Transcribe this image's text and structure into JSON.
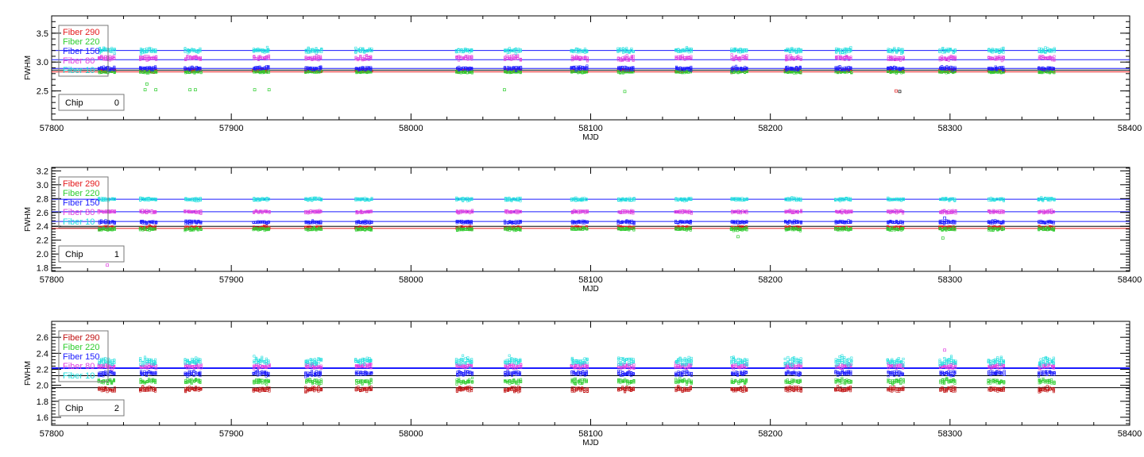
{
  "chart_data": [
    {
      "type": "scatter",
      "chip_label": "Chip",
      "chip_number": "0",
      "xlabel": "MJD",
      "ylabel": "FWHM",
      "xlim": [
        57800,
        58400
      ],
      "ylim": [
        2.0,
        3.8
      ],
      "x_ticks": [
        "57800",
        "57900",
        "58000",
        "58100",
        "58200",
        "58300",
        "58400"
      ],
      "y_ticks": [
        "2.5",
        "3.0",
        "3.5"
      ],
      "y_tick_values": [
        2.5,
        3.0,
        3.5
      ],
      "legend": [
        "Fiber 290",
        "Fiber 220",
        "Fiber 150",
        "Fiber 80",
        "Fiber 10"
      ],
      "series": [
        {
          "name": "Fiber 290",
          "color": "#e41a1c",
          "median": 2.85,
          "mean": 2.84,
          "spread": 0.02
        },
        {
          "name": "Fiber 220",
          "color": "#2ecc2e",
          "median": 2.83,
          "mean": 2.86,
          "spread": 0.02
        },
        {
          "name": "Fiber 150",
          "color": "#1a1aff",
          "median": 2.89,
          "mean": 2.9,
          "spread": 0.03
        },
        {
          "name": "Fiber 80",
          "color": "#e040e0",
          "median": 3.07,
          "mean": 3.05,
          "spread": 0.04
        },
        {
          "name": "Fiber 10",
          "color": "#20dede",
          "median": 3.2,
          "mean": 3.2,
          "spread": 0.04
        }
      ],
      "ref_lines": [
        {
          "y": 3.2,
          "color": "#1a1aff"
        },
        {
          "y": 3.04,
          "color": "#1a1aff"
        },
        {
          "y": 2.89,
          "color": "#1a1aff"
        },
        {
          "y": 2.86,
          "color": "#000000"
        },
        {
          "y": 2.83,
          "color": "#e41a1c"
        }
      ],
      "outliers": [
        {
          "x": 57853,
          "y": 2.62,
          "color": "#2ecc2e"
        },
        {
          "x": 57852,
          "y": 2.52,
          "color": "#2ecc2e"
        },
        {
          "x": 57858,
          "y": 2.52,
          "color": "#2ecc2e"
        },
        {
          "x": 57877,
          "y": 2.52,
          "color": "#2ecc2e"
        },
        {
          "x": 57880,
          "y": 2.52,
          "color": "#2ecc2e"
        },
        {
          "x": 57913,
          "y": 2.52,
          "color": "#2ecc2e"
        },
        {
          "x": 57921,
          "y": 2.52,
          "color": "#2ecc2e"
        },
        {
          "x": 58052,
          "y": 2.52,
          "color": "#2ecc2e"
        },
        {
          "x": 58119,
          "y": 2.49,
          "color": "#2ecc2e"
        },
        {
          "x": 58270,
          "y": 2.5,
          "color": "#e41a1c"
        },
        {
          "x": 58272,
          "y": 2.49,
          "color": "#000000"
        }
      ]
    },
    {
      "type": "scatter",
      "chip_label": "Chip",
      "chip_number": "1",
      "xlabel": "MJD",
      "ylabel": "FWHM",
      "xlim": [
        57800,
        58400
      ],
      "ylim": [
        1.75,
        3.25
      ],
      "x_ticks": [
        "57800",
        "57900",
        "58000",
        "58100",
        "58200",
        "58300",
        "58400"
      ],
      "y_ticks": [
        "1.8",
        "2.0",
        "2.2",
        "2.4",
        "2.6",
        "2.8",
        "3.0",
        "3.2"
      ],
      "y_tick_values": [
        1.8,
        2.0,
        2.2,
        2.4,
        2.6,
        2.8,
        3.0,
        3.2
      ],
      "legend": [
        "Fiber 290",
        "Fiber 220",
        "Fiber 150",
        "Fiber 80",
        "Fiber 10"
      ],
      "series": [
        {
          "name": "Fiber 290",
          "color": "#e41a1c",
          "median": 2.38,
          "mean": 2.37,
          "spread": 0.02
        },
        {
          "name": "Fiber 220",
          "color": "#2ecc2e",
          "median": 2.36,
          "mean": 2.4,
          "spread": 0.02
        },
        {
          "name": "Fiber 150",
          "color": "#1a1aff",
          "median": 2.46,
          "mean": 2.46,
          "spread": 0.02
        },
        {
          "name": "Fiber 80",
          "color": "#e040e0",
          "median": 2.61,
          "mean": 2.61,
          "spread": 0.02
        },
        {
          "name": "Fiber 10",
          "color": "#20dede",
          "median": 2.79,
          "mean": 2.79,
          "spread": 0.02
        }
      ],
      "ref_lines": [
        {
          "y": 2.79,
          "color": "#1a1aff"
        },
        {
          "y": 2.61,
          "color": "#1a1aff"
        },
        {
          "y": 2.47,
          "color": "#1a1aff"
        },
        {
          "y": 2.4,
          "color": "#000000"
        },
        {
          "y": 2.37,
          "color": "#e41a1c"
        }
      ],
      "outliers": [
        {
          "x": 57831,
          "y": 1.84,
          "color": "#e040e0"
        },
        {
          "x": 58182,
          "y": 2.25,
          "color": "#2ecc2e"
        },
        {
          "x": 58296,
          "y": 2.23,
          "color": "#2ecc2e"
        },
        {
          "x": 58297,
          "y": 2.52,
          "color": "#1a1aff"
        }
      ]
    },
    {
      "type": "scatter",
      "chip_label": "Chip",
      "chip_number": "2",
      "xlabel": "MJD",
      "ylabel": "FWHM",
      "xlim": [
        57800,
        58400
      ],
      "ylim": [
        1.5,
        2.8
      ],
      "x_ticks": [
        "57800",
        "57900",
        "58000",
        "58100",
        "58200",
        "58300",
        "58400"
      ],
      "y_ticks": [
        "1.6",
        "1.8",
        "2.0",
        "2.2",
        "2.4",
        "2.6"
      ],
      "y_tick_values": [
        1.6,
        1.8,
        2.0,
        2.2,
        2.4,
        2.6
      ],
      "legend": [
        "Fiber 290",
        "Fiber 220",
        "Fiber 150",
        "Fiber 80",
        "Fiber 10"
      ],
      "series": [
        {
          "name": "Fiber 290",
          "color": "#c01010",
          "median": 1.95,
          "mean": 1.97,
          "spread": 0.03
        },
        {
          "name": "Fiber 220",
          "color": "#2ecc2e",
          "median": 2.05,
          "mean": 2.05,
          "spread": 0.03
        },
        {
          "name": "Fiber 150",
          "color": "#1a1aff",
          "median": 2.15,
          "mean": 2.15,
          "spread": 0.03
        },
        {
          "name": "Fiber 80",
          "color": "#e040e0",
          "median": 2.24,
          "mean": 2.24,
          "spread": 0.03
        },
        {
          "name": "Fiber 10",
          "color": "#20dede",
          "median": 2.3,
          "mean": 2.3,
          "spread": 0.05
        }
      ],
      "ref_lines": [
        {
          "y": 2.22,
          "color": "#1a1aff"
        },
        {
          "y": 2.21,
          "color": "#1a1aff"
        },
        {
          "y": 2.12,
          "color": "#000000"
        },
        {
          "y": 1.97,
          "color": "#000000"
        }
      ],
      "outliers": [
        {
          "x": 58297,
          "y": 2.44,
          "color": "#e040e0"
        }
      ]
    }
  ],
  "epochs": [
    57831,
    57854,
    57879,
    57917,
    57946,
    57974,
    58030,
    58057,
    58094,
    58120,
    58152,
    58183,
    58213,
    58241,
    58270,
    58299,
    58326,
    58354
  ]
}
